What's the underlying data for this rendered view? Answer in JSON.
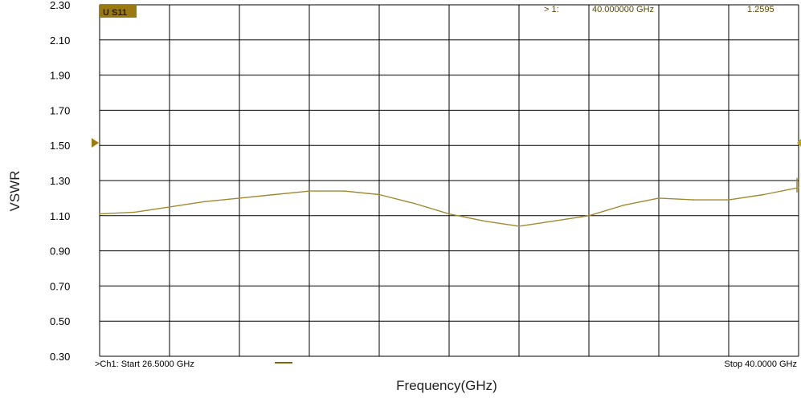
{
  "chart_data": {
    "type": "line",
    "trace_label": "U S11",
    "ylabel": "VSWR",
    "xlabel": "Frequency(GHz)",
    "ylim": [
      0.3,
      2.3
    ],
    "xlim": [
      26.5,
      40.0
    ],
    "y_tick_labels": [
      "2.30",
      "2.10",
      "1.90",
      "1.70",
      "1.50",
      "1.30",
      "1.10",
      "0.90",
      "0.70",
      "0.50",
      "0.30"
    ],
    "y_tick_values": [
      2.3,
      2.1,
      1.9,
      1.7,
      1.5,
      1.3,
      1.1,
      0.9,
      0.7,
      0.5,
      0.3
    ],
    "x_divisions": 10,
    "grid": true,
    "reference_level": 1.5,
    "marker": {
      "label": "> 1:",
      "frequency": "40.000000 GHz",
      "value": "1.2595"
    },
    "start_label": ">Ch1: Start  26.5000 GHz",
    "stop_label": "Stop  40.0000 GHz",
    "colors": {
      "trace": "#a08a30",
      "grid": "#000000",
      "badge": "#9a7a10",
      "reference": "#c8a010"
    },
    "x": [
      26.5,
      27.175,
      27.85,
      28.525,
      29.2,
      29.875,
      30.55,
      31.225,
      31.9,
      32.575,
      33.25,
      33.925,
      34.6,
      35.275,
      35.95,
      36.625,
      37.3,
      37.975,
      38.65,
      39.325,
      40.0
    ],
    "y": [
      1.11,
      1.12,
      1.15,
      1.18,
      1.2,
      1.22,
      1.24,
      1.24,
      1.22,
      1.17,
      1.11,
      1.07,
      1.04,
      1.07,
      1.1,
      1.16,
      1.2,
      1.19,
      1.19,
      1.22,
      1.26
    ]
  }
}
